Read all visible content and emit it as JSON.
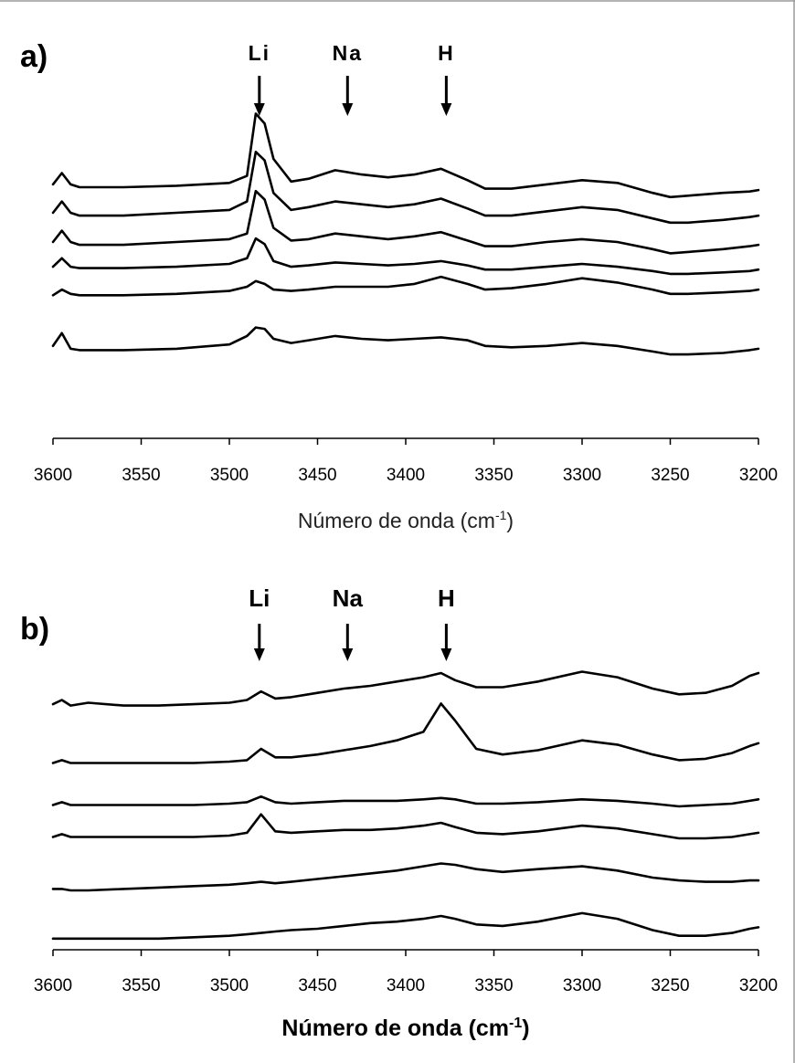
{
  "chart_data": [
    {
      "type": "line",
      "panel_label": "a)",
      "xlabel": "Número de onda (cm",
      "xlabel_sup": "-1",
      "xlabel_close": ")",
      "xlabel_bold": false,
      "xlim": [
        3600,
        3200
      ],
      "x_ticks": [
        "3600",
        "3550",
        "3500",
        "3450",
        "3400",
        "3350",
        "3300",
        "3250",
        "3200"
      ],
      "annotations": [
        {
          "label": "Li",
          "x": 3483
        },
        {
          "label": "Na",
          "x": 3433
        },
        {
          "label": "H",
          "x": 3377
        }
      ],
      "annotation_bold": false,
      "grid": false,
      "legend": "none",
      "x": [
        3600,
        3595,
        3590,
        3585,
        3560,
        3530,
        3500,
        3490,
        3485,
        3480,
        3475,
        3465,
        3455,
        3440,
        3425,
        3410,
        3395,
        3380,
        3365,
        3355,
        3340,
        3320,
        3300,
        3280,
        3260,
        3250,
        3240,
        3220,
        3205,
        3200
      ],
      "series": [
        {
          "values": [
            22,
            30,
            22,
            20,
            20,
            21,
            23,
            28,
            72,
            65,
            40,
            24,
            26,
            32,
            29,
            27,
            29,
            33,
            25,
            19,
            19,
            22,
            25,
            23,
            16,
            13,
            14,
            16,
            17,
            18
          ]
        },
        {
          "values": [
            20,
            28,
            20,
            18,
            18,
            20,
            22,
            28,
            63,
            57,
            34,
            22,
            24,
            28,
            26,
            24,
            26,
            30,
            23,
            18,
            18,
            21,
            24,
            22,
            16,
            13,
            13,
            15,
            17,
            18
          ]
        },
        {
          "values": [
            20,
            28,
            20,
            18,
            18,
            20,
            22,
            26,
            56,
            50,
            30,
            21,
            22,
            26,
            24,
            22,
            24,
            27,
            21,
            17,
            17,
            20,
            22,
            20,
            15,
            12,
            13,
            15,
            17,
            18
          ]
        },
        {
          "values": [
            18,
            24,
            18,
            17,
            17,
            18,
            20,
            24,
            38,
            34,
            22,
            18,
            19,
            21,
            20,
            19,
            20,
            22,
            19,
            16,
            16,
            18,
            20,
            18,
            15,
            13,
            13,
            14,
            15,
            16
          ]
        },
        {
          "values": [
            14,
            18,
            15,
            14,
            14,
            15,
            17,
            20,
            24,
            22,
            18,
            17,
            18,
            20,
            20,
            20,
            22,
            27,
            22,
            18,
            19,
            22,
            26,
            23,
            18,
            15,
            15,
            16,
            17,
            18
          ]
        },
        {
          "values": [
            15,
            24,
            13,
            12,
            12,
            13,
            16,
            22,
            28,
            27,
            20,
            17,
            19,
            22,
            20,
            19,
            20,
            21,
            19,
            15,
            14,
            15,
            17,
            15,
            11,
            9,
            9,
            10,
            12,
            13
          ]
        }
      ]
    },
    {
      "type": "line",
      "panel_label": "b)",
      "xlabel": "Número de onda (cm",
      "xlabel_sup": "-1",
      "xlabel_close": ")",
      "xlabel_bold": true,
      "xlim": [
        3600,
        3200
      ],
      "x_ticks": [
        "3600",
        "3550",
        "3500",
        "3450",
        "3400",
        "3350",
        "3300",
        "3250",
        "3200"
      ],
      "annotations": [
        {
          "label": "Li",
          "x": 3483
        },
        {
          "label": "Na",
          "x": 3433
        },
        {
          "label": "H",
          "x": 3377
        }
      ],
      "annotation_bold": true,
      "grid": false,
      "legend": "none",
      "x": [
        3600,
        3595,
        3590,
        3580,
        3560,
        3540,
        3520,
        3500,
        3490,
        3482,
        3474,
        3465,
        3450,
        3435,
        3420,
        3405,
        3390,
        3380,
        3372,
        3360,
        3345,
        3325,
        3300,
        3280,
        3260,
        3245,
        3230,
        3215,
        3205,
        3200
      ],
      "series": [
        {
          "values": [
            18,
            21,
            17,
            19,
            17,
            17,
            18,
            19,
            21,
            27,
            22,
            23,
            26,
            29,
            31,
            34,
            37,
            40,
            35,
            30,
            30,
            34,
            41,
            37,
            29,
            25,
            26,
            31,
            38,
            40
          ]
        },
        {
          "values": [
            10,
            12,
            10,
            10,
            10,
            10,
            10,
            11,
            12,
            20,
            14,
            14,
            16,
            19,
            22,
            26,
            32,
            52,
            40,
            20,
            16,
            19,
            26,
            23,
            16,
            12,
            13,
            17,
            22,
            24
          ]
        },
        {
          "values": [
            10,
            12,
            10,
            10,
            10,
            10,
            10,
            11,
            12,
            16,
            12,
            11,
            12,
            13,
            13,
            13,
            14,
            15,
            14,
            11,
            11,
            12,
            14,
            13,
            11,
            9,
            10,
            11,
            13,
            14
          ]
        },
        {
          "values": [
            10,
            12,
            10,
            10,
            10,
            10,
            10,
            11,
            13,
            26,
            14,
            13,
            14,
            15,
            15,
            16,
            18,
            20,
            17,
            13,
            12,
            14,
            18,
            16,
            12,
            9,
            9,
            10,
            12,
            13
          ]
        },
        {
          "values": [
            12,
            12,
            11,
            11,
            12,
            13,
            14,
            15,
            16,
            17,
            16,
            17,
            19,
            21,
            23,
            25,
            28,
            30,
            29,
            26,
            24,
            26,
            28,
            25,
            20,
            18,
            17,
            17,
            18,
            18
          ]
        },
        {
          "values": [
            4,
            4,
            4,
            4,
            4,
            4,
            5,
            6,
            7,
            8,
            9,
            10,
            11,
            13,
            15,
            16,
            18,
            20,
            18,
            14,
            13,
            16,
            22,
            18,
            10,
            6,
            6,
            8,
            11,
            12
          ]
        }
      ]
    }
  ]
}
